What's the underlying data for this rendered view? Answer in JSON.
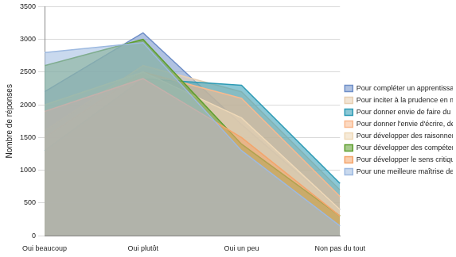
{
  "chart_data": {
    "type": "line",
    "y_label": "Nombre de réponses",
    "categories": [
      "Oui beaucoup",
      "Oui plutôt",
      "Oui un peu",
      "Non pas du tout"
    ],
    "series": [
      {
        "name": "Pour une meilleure maîtrise des appareils numériques",
        "color": "#9db9e0",
        "values": [
          2800,
          2950,
          1300,
          150
        ]
      },
      {
        "name": "Pour développer le sens critique",
        "color": "#f4a56b",
        "values": [
          1900,
          2400,
          1500,
          300
        ]
      },
      {
        "name": "Pour développer des compétences en matière de recherche",
        "color": "#5e9e2f",
        "values": [
          2600,
          3000,
          1400,
          300
        ]
      },
      {
        "name": "Pour développer des raisonnements spécifiques",
        "color": "#efd9b8",
        "values": [
          2000,
          2500,
          1800,
          400
        ]
      },
      {
        "name": "Pour donner l'envie d'écrire, de publier",
        "color": "#f9b98e",
        "values": [
          1500,
          2500,
          2100,
          600
        ]
      },
      {
        "name": "Pour donner envie de faire du développement informatique",
        "color": "#2e9bb5",
        "values": [
          1300,
          2400,
          2300,
          800
        ]
      },
      {
        "name": "Pour inciter à la prudence en matière de publication",
        "color": "#e8cfb2",
        "values": [
          1600,
          2600,
          2200,
          700
        ]
      },
      {
        "name": "Pour compléter un apprentissage disciplinaire",
        "color": "#6f8fc8",
        "values": [
          2200,
          3100,
          1700,
          400
        ]
      }
    ],
    "ylim": [
      0,
      3500
    ],
    "yticks": [
      0,
      500,
      1000,
      1500,
      2000,
      2500,
      3000,
      3500
    ],
    "grid": true,
    "legend": "right"
  }
}
